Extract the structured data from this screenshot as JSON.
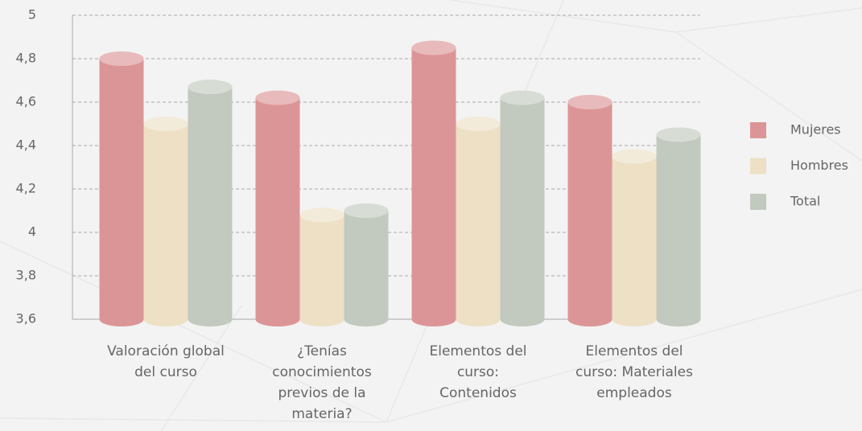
{
  "chart_data": {
    "type": "bar",
    "categories": [
      "Valoración global del curso",
      "¿Tenías conocimientos previos de la materia?",
      "Elementos del curso: Contenidos",
      "Elementos del curso: Materiales empleados"
    ],
    "series": [
      {
        "name": "Mujeres",
        "color": "#dc9597",
        "values": [
          4.8,
          4.62,
          4.85,
          4.6
        ]
      },
      {
        "name": "Hombres",
        "color": "#ede0c5",
        "values": [
          4.5,
          4.08,
          4.5,
          4.35
        ]
      },
      {
        "name": "Total",
        "color": "#c2c9bf",
        "values": [
          4.67,
          4.1,
          4.62,
          4.45
        ]
      }
    ],
    "ylim": [
      3.6,
      5
    ],
    "yticks": [
      {
        "value": 3.6,
        "label": "3,6"
      },
      {
        "value": 3.8,
        "label": "3,8"
      },
      4,
      {
        "value": 4.2,
        "label": "4,2"
      },
      {
        "value": 4.4,
        "label": "4,4"
      },
      {
        "value": 4.6,
        "label": "4,6"
      },
      {
        "value": 4.8,
        "label": "4,8"
      },
      5
    ],
    "grid": true,
    "legend": "right"
  }
}
